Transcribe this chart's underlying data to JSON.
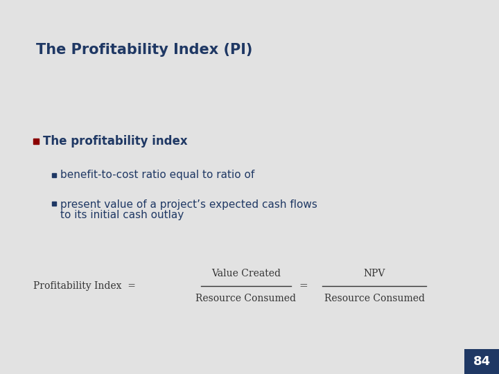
{
  "title": "The Profitability Index (PI)",
  "title_color": "#1F3864",
  "background_color": "#E2E2E2",
  "bullet1_text": "The profitability index",
  "bullet1_color": "#1F3864",
  "bullet1_marker_color": "#8B0000",
  "sub_bullet1": "benefit-to-cost ratio equal to ratio of",
  "sub_bullet2_line1": "present value of a project’s expected cash flows",
  "sub_bullet2_line2": "to its initial cash outlay",
  "sub_bullet_color": "#1F3864",
  "sub_bullet_marker_color": "#1F3864",
  "formula_lhs": "Profitability Index",
  "formula_num1": "Value Created",
  "formula_den1": "Resource Consumed",
  "formula_num2": "NPV",
  "formula_den2": "Resource Consumed",
  "formula_color": "#333333",
  "page_number": "84",
  "page_bg": "#1F3864",
  "page_text_color": "#FFFFFF",
  "title_fontsize": 15,
  "bullet1_fontsize": 12,
  "sub_bullet_fontsize": 11,
  "formula_fontsize": 10
}
